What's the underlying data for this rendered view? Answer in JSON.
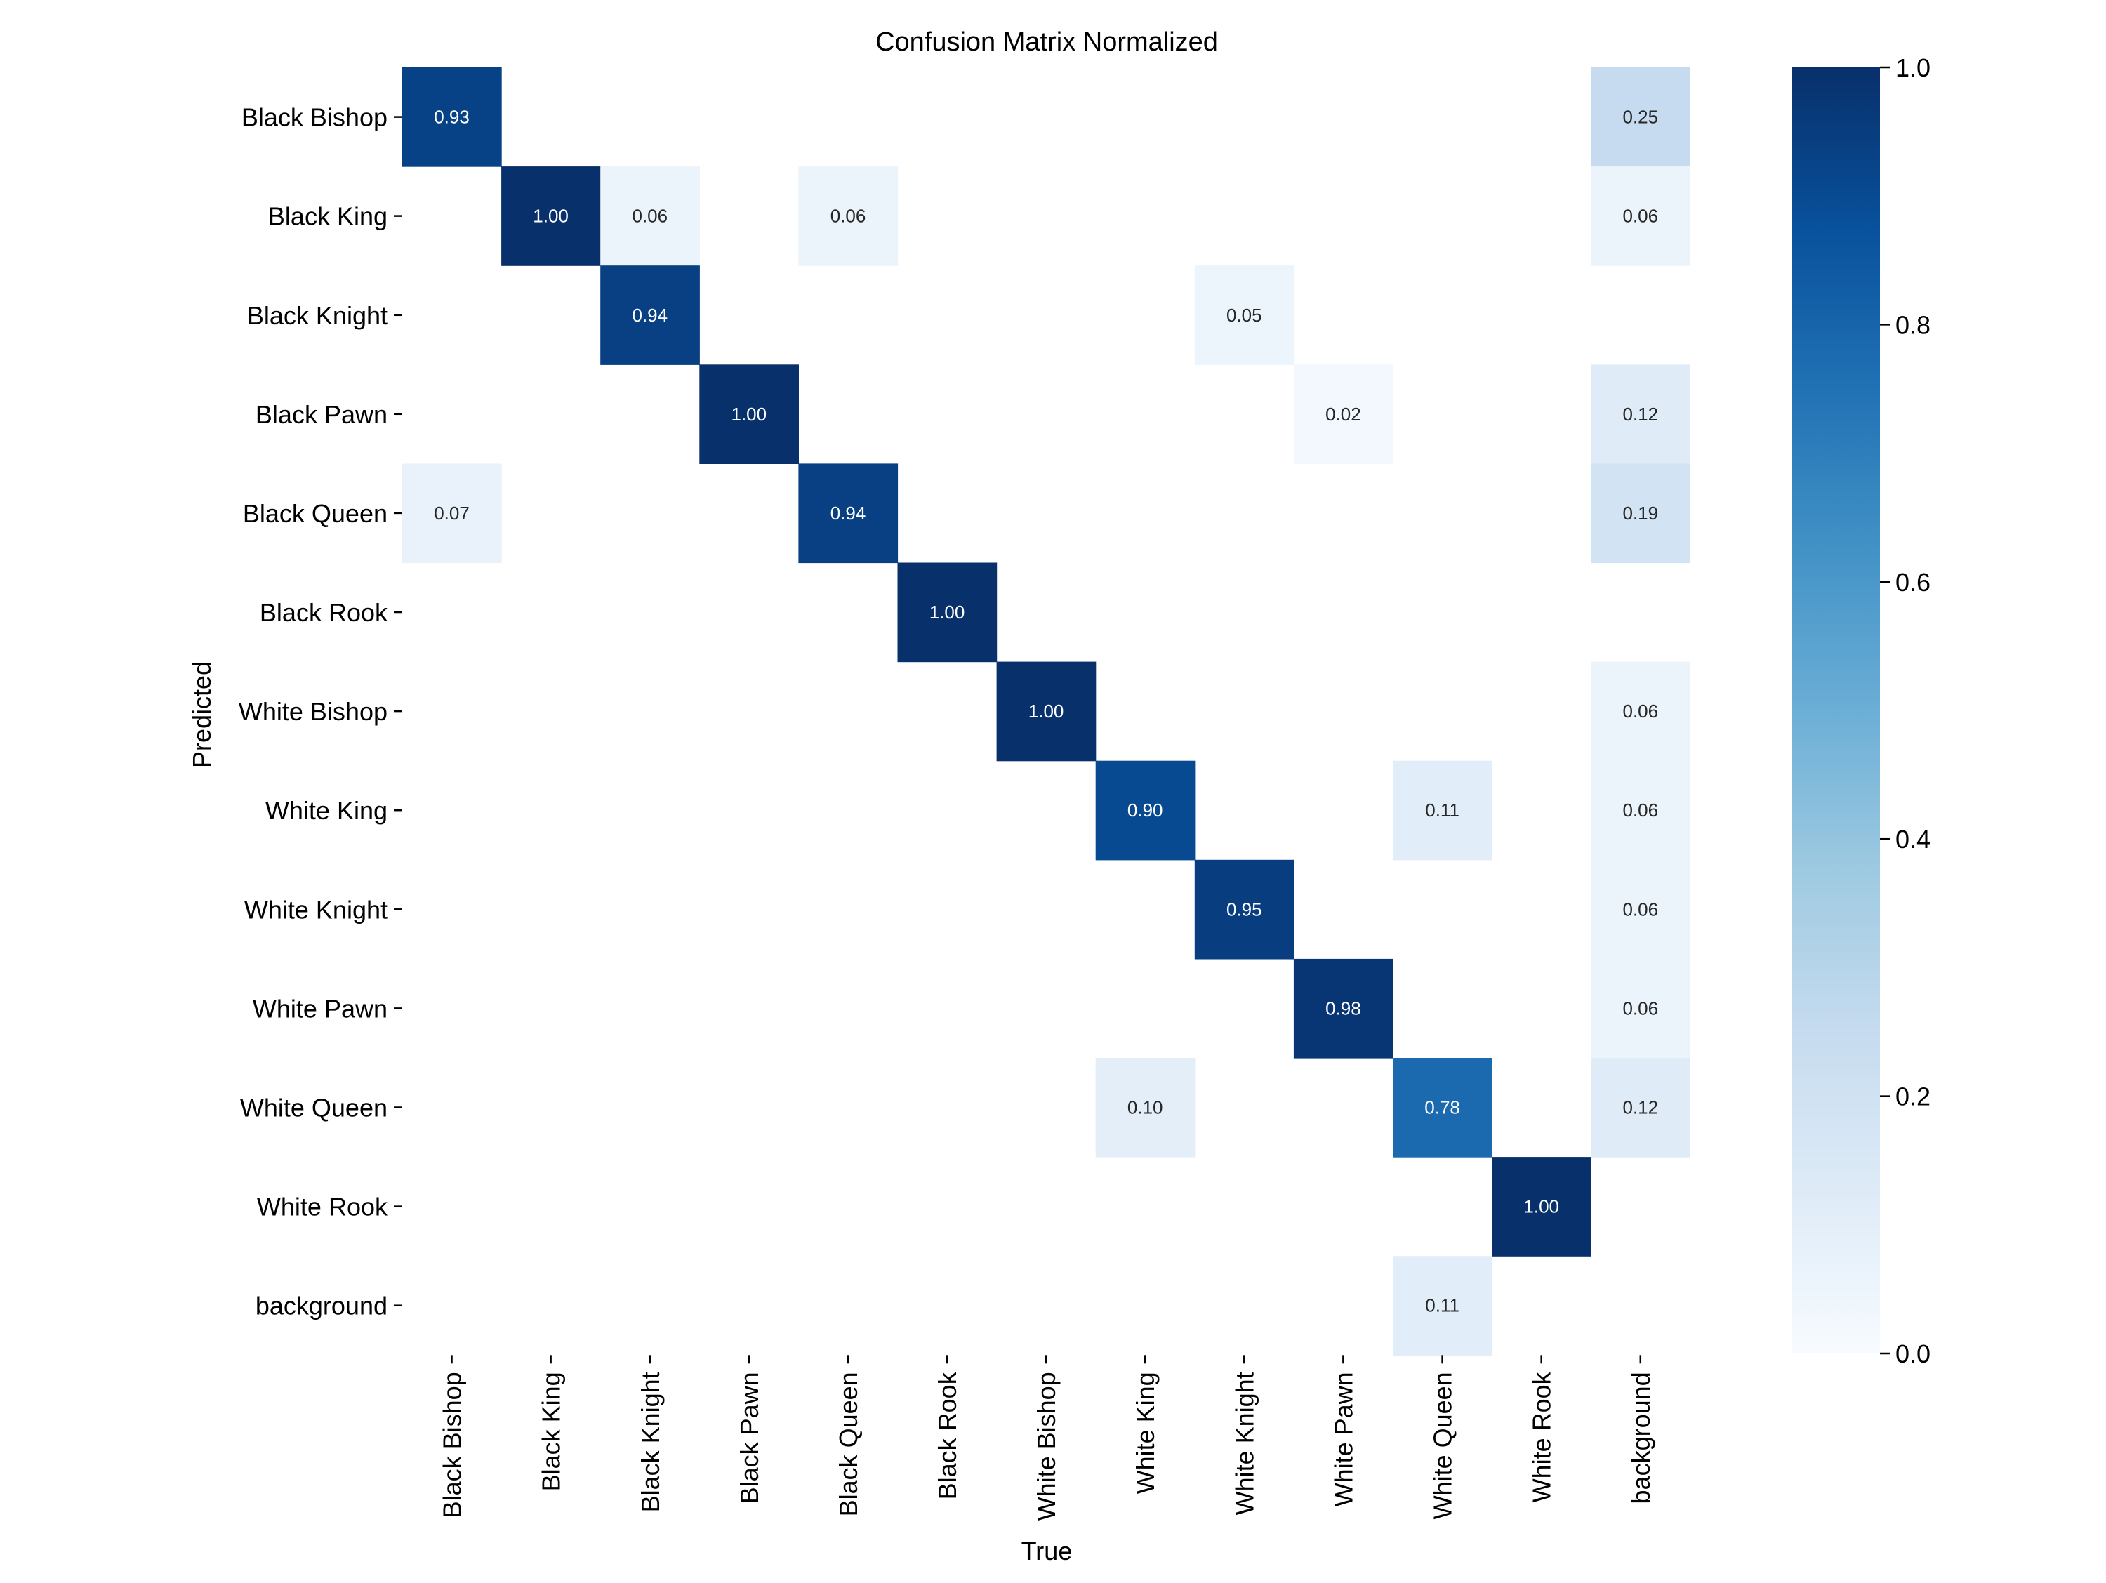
{
  "chart_data": {
    "type": "heatmap",
    "title": "Confusion Matrix Normalized",
    "xlabel": "True",
    "ylabel": "Predicted",
    "x_categories": [
      "Black Bishop",
      "Black King",
      "Black Knight",
      "Black Pawn",
      "Black Queen",
      "Black Rook",
      "White Bishop",
      "White King",
      "White Knight",
      "White Pawn",
      "White Queen",
      "White Rook",
      "background"
    ],
    "y_categories": [
      "Black Bishop",
      "Black King",
      "Black Knight",
      "Black Pawn",
      "Black Queen",
      "Black Rook",
      "White Bishop",
      "White King",
      "White Knight",
      "White Pawn",
      "White Queen",
      "White Rook",
      "background"
    ],
    "values": [
      [
        0.93,
        null,
        null,
        null,
        null,
        null,
        null,
        null,
        null,
        null,
        null,
        null,
        0.25
      ],
      [
        null,
        1.0,
        0.06,
        null,
        0.06,
        null,
        null,
        null,
        null,
        null,
        null,
        null,
        0.06
      ],
      [
        null,
        null,
        0.94,
        null,
        null,
        null,
        null,
        null,
        0.05,
        null,
        null,
        null,
        null
      ],
      [
        null,
        null,
        null,
        1.0,
        null,
        null,
        null,
        null,
        null,
        0.02,
        null,
        null,
        0.12
      ],
      [
        0.07,
        null,
        null,
        null,
        0.94,
        null,
        null,
        null,
        null,
        null,
        null,
        null,
        0.19
      ],
      [
        null,
        null,
        null,
        null,
        null,
        1.0,
        null,
        null,
        null,
        null,
        null,
        null,
        null
      ],
      [
        null,
        null,
        null,
        null,
        null,
        null,
        1.0,
        null,
        null,
        null,
        null,
        null,
        0.06
      ],
      [
        null,
        null,
        null,
        null,
        null,
        null,
        null,
        0.9,
        null,
        null,
        0.11,
        null,
        0.06
      ],
      [
        null,
        null,
        null,
        null,
        null,
        null,
        null,
        null,
        0.95,
        null,
        null,
        null,
        0.06
      ],
      [
        null,
        null,
        null,
        null,
        null,
        null,
        null,
        null,
        null,
        0.98,
        null,
        null,
        0.06
      ],
      [
        null,
        null,
        null,
        null,
        null,
        null,
        null,
        0.1,
        null,
        null,
        0.78,
        null,
        0.12
      ],
      [
        null,
        null,
        null,
        null,
        null,
        null,
        null,
        null,
        null,
        null,
        null,
        1.0,
        null
      ],
      [
        null,
        null,
        null,
        null,
        null,
        null,
        null,
        null,
        null,
        null,
        0.11,
        null,
        null
      ]
    ],
    "value_format": "0.00",
    "colormap": "Blues",
    "colorbar": {
      "range": [
        0.0,
        1.0
      ],
      "ticks": [
        0.0,
        0.2,
        0.4,
        0.6,
        0.8,
        1.0
      ],
      "tick_labels": [
        "0.0",
        "0.2",
        "0.4",
        "0.6",
        "0.8",
        "1.0"
      ]
    },
    "grid": false,
    "legend": "colorbar-right"
  }
}
